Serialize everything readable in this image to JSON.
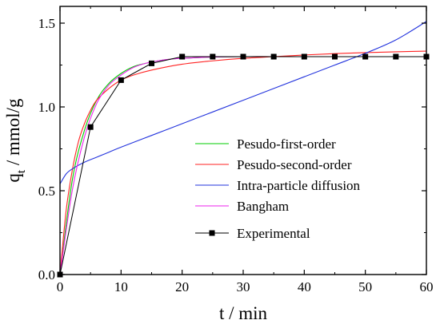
{
  "chart_data": {
    "type": "line",
    "xlabel": "t / min",
    "ylabel": {
      "main": "q",
      "sub": "t",
      "rest": " / mmol/g"
    },
    "xlim": [
      0,
      60
    ],
    "ylim": [
      0,
      1.6
    ],
    "xticks": [
      0,
      10,
      20,
      30,
      40,
      50,
      60
    ],
    "xtick_labels": [
      "0",
      "10",
      "20",
      "30",
      "40",
      "50",
      "60"
    ],
    "yticks": [
      0.0,
      0.5,
      1.0,
      1.5
    ],
    "ytick_labels": [
      "0.0",
      "0.5",
      "1.0",
      "1.5"
    ],
    "grid": false,
    "legend_position": "center-right",
    "series": [
      {
        "name": "Pesudo-first-order",
        "color": "#00cc00",
        "marker": "none",
        "x": [
          0,
          2,
          4,
          6,
          8,
          10,
          12,
          14,
          16,
          18,
          20,
          25,
          30,
          35,
          40,
          45,
          50,
          55,
          60
        ],
        "y": [
          0,
          0.56,
          0.86,
          1.04,
          1.14,
          1.2,
          1.24,
          1.26,
          1.275,
          1.285,
          1.29,
          1.298,
          1.3,
          1.3,
          1.3,
          1.3,
          1.3,
          1.3,
          1.3
        ]
      },
      {
        "name": "Pesudo-second-order",
        "color": "#ff2222",
        "marker": "none",
        "x": [
          0,
          1,
          2,
          3,
          4,
          5,
          6,
          8,
          10,
          12,
          15,
          20,
          25,
          30,
          35,
          40,
          45,
          50,
          55,
          60
        ],
        "y": [
          0,
          0.38,
          0.62,
          0.79,
          0.9,
          0.98,
          1.04,
          1.11,
          1.16,
          1.19,
          1.22,
          1.255,
          1.275,
          1.29,
          1.3,
          1.31,
          1.318,
          1.324,
          1.329,
          1.333
        ]
      },
      {
        "name": "Intra-particle diffusion",
        "color": "#2233dd",
        "marker": "none",
        "x": [
          0,
          1,
          2,
          4,
          6,
          8,
          10,
          15,
          20,
          25,
          30,
          35,
          40,
          45,
          50,
          55,
          60
        ],
        "y": [
          0.54,
          0.6,
          0.63,
          0.67,
          0.7,
          0.73,
          0.76,
          0.83,
          0.9,
          0.97,
          1.04,
          1.11,
          1.18,
          1.25,
          1.32,
          1.4,
          1.51
        ]
      },
      {
        "name": "Bangham",
        "color": "#ee22ee",
        "marker": "none",
        "x": [
          0,
          2,
          4,
          6,
          8,
          10,
          12,
          14,
          16,
          18,
          20,
          25,
          30,
          35,
          40,
          45,
          50,
          55,
          60
        ],
        "y": [
          0,
          0.5,
          0.82,
          1.02,
          1.13,
          1.19,
          1.235,
          1.26,
          1.275,
          1.285,
          1.29,
          1.298,
          1.3,
          1.3,
          1.3,
          1.3,
          1.3,
          1.3,
          1.3
        ]
      },
      {
        "name": "Experimental",
        "color": "#000000",
        "marker": "square",
        "x": [
          0,
          5,
          10,
          15,
          20,
          25,
          30,
          35,
          40,
          45,
          50,
          55,
          60
        ],
        "y": [
          0.0,
          0.88,
          1.16,
          1.26,
          1.3,
          1.3,
          1.3,
          1.3,
          1.3,
          1.3,
          1.3,
          1.3,
          1.3
        ]
      }
    ]
  }
}
